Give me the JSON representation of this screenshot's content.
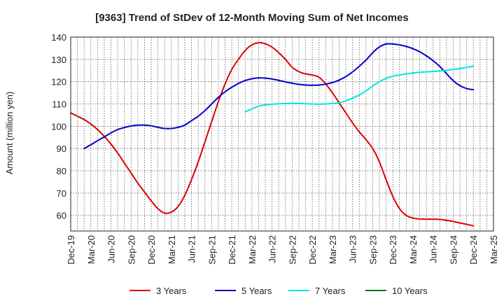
{
  "chart_data": {
    "type": "line",
    "title": "[9363]  Trend of StDev of 12-Month Moving Sum of Net Incomes",
    "xlabel": "",
    "ylabel": "Amount (million yen)",
    "ylim": [
      53,
      140
    ],
    "yticks": [
      60,
      70,
      80,
      90,
      100,
      110,
      120,
      130,
      140
    ],
    "grid": true,
    "legend_position": "bottom",
    "x_ticks": [
      "Dec-19",
      "Mar-20",
      "Jun-20",
      "Sep-20",
      "Dec-20",
      "Mar-21",
      "Jun-21",
      "Sep-21",
      "Dec-21",
      "Mar-22",
      "Jun-22",
      "Sep-22",
      "Dec-22",
      "Mar-23",
      "Jun-23",
      "Sep-23",
      "Dec-23",
      "Mar-24",
      "Jun-24",
      "Sep-24",
      "Dec-24",
      "Mar-25"
    ],
    "series": [
      {
        "name": "3 Years",
        "color": "#dd0000",
        "points": [
          [
            "Dec-19",
            106
          ],
          [
            "Jan-20",
            104.5
          ],
          [
            "Feb-20",
            103
          ],
          [
            "Mar-20",
            101
          ],
          [
            "Apr-20",
            98.5
          ],
          [
            "May-20",
            95.5
          ],
          [
            "Jun-20",
            92
          ],
          [
            "Jul-20",
            88
          ],
          [
            "Aug-20",
            83.5
          ],
          [
            "Sep-20",
            79
          ],
          [
            "Oct-20",
            74.5
          ],
          [
            "Nov-20",
            70.5
          ],
          [
            "Dec-20",
            66.5
          ],
          [
            "Jan-21",
            63
          ],
          [
            "Feb-21",
            61
          ],
          [
            "Mar-21",
            61.5
          ],
          [
            "Apr-21",
            64
          ],
          [
            "May-21",
            69
          ],
          [
            "Jun-21",
            76
          ],
          [
            "Jul-21",
            84
          ],
          [
            "Aug-21",
            93
          ],
          [
            "Sep-21",
            102
          ],
          [
            "Oct-21",
            111
          ],
          [
            "Nov-21",
            119
          ],
          [
            "Dec-21",
            125.5
          ],
          [
            "Jan-22",
            130
          ],
          [
            "Feb-22",
            134
          ],
          [
            "Mar-22",
            136.5
          ],
          [
            "Apr-22",
            137.5
          ],
          [
            "May-22",
            137
          ],
          [
            "Jun-22",
            135.5
          ],
          [
            "Jul-22",
            133
          ],
          [
            "Aug-22",
            130
          ],
          [
            "Sep-22",
            126.5
          ],
          [
            "Oct-22",
            124.5
          ],
          [
            "Nov-22",
            123.5
          ],
          [
            "Dec-22",
            123
          ],
          [
            "Jan-23",
            122
          ],
          [
            "Feb-23",
            119
          ],
          [
            "Mar-23",
            115
          ],
          [
            "Apr-23",
            110.5
          ],
          [
            "May-23",
            106
          ],
          [
            "Jun-23",
            101.5
          ],
          [
            "Jul-23",
            97.5
          ],
          [
            "Aug-23",
            94
          ],
          [
            "Sep-23",
            90
          ],
          [
            "Oct-23",
            84
          ],
          [
            "Nov-23",
            76
          ],
          [
            "Dec-23",
            68.5
          ],
          [
            "Jan-24",
            63
          ],
          [
            "Feb-24",
            60
          ],
          [
            "Mar-24",
            58.8
          ],
          [
            "Apr-24",
            58.4
          ],
          [
            "May-24",
            58.3
          ],
          [
            "Jun-24",
            58.3
          ],
          [
            "Jul-24",
            58.2
          ],
          [
            "Aug-24",
            57.8
          ],
          [
            "Sep-24",
            57.3
          ],
          [
            "Oct-24",
            56.6
          ],
          [
            "Nov-24",
            56
          ],
          [
            "Dec-24",
            55.3
          ]
        ]
      },
      {
        "name": "5 Years",
        "color": "#0000cc",
        "points": [
          [
            "Feb-20",
            90
          ],
          [
            "Mar-20",
            91.7
          ],
          [
            "Apr-20",
            93.5
          ],
          [
            "May-20",
            95.2
          ],
          [
            "Jun-20",
            97
          ],
          [
            "Jul-20",
            98.5
          ],
          [
            "Aug-20",
            99.4
          ],
          [
            "Sep-20",
            100.1
          ],
          [
            "Oct-20",
            100.5
          ],
          [
            "Nov-20",
            100.5
          ],
          [
            "Dec-20",
            100.2
          ],
          [
            "Jan-21",
            99.5
          ],
          [
            "Feb-21",
            99
          ],
          [
            "Mar-21",
            99
          ],
          [
            "Apr-21",
            99.5
          ],
          [
            "May-21",
            100.5
          ],
          [
            "Jun-21",
            102.5
          ],
          [
            "Jul-21",
            104.5
          ],
          [
            "Aug-21",
            107
          ],
          [
            "Sep-21",
            110
          ],
          [
            "Oct-21",
            113
          ],
          [
            "Nov-21",
            115.5
          ],
          [
            "Dec-21",
            117.5
          ],
          [
            "Jan-22",
            119.2
          ],
          [
            "Feb-22",
            120.5
          ],
          [
            "Mar-22",
            121.3
          ],
          [
            "Apr-22",
            121.7
          ],
          [
            "May-22",
            121.6
          ],
          [
            "Jun-22",
            121.2
          ],
          [
            "Jul-22",
            120.6
          ],
          [
            "Aug-22",
            119.9
          ],
          [
            "Sep-22",
            119.3
          ],
          [
            "Oct-22",
            118.8
          ],
          [
            "Nov-22",
            118.5
          ],
          [
            "Dec-22",
            118.4
          ],
          [
            "Jan-23",
            118.5
          ],
          [
            "Feb-23",
            118.9
          ],
          [
            "Mar-23",
            119.6
          ],
          [
            "Apr-23",
            120.7
          ],
          [
            "May-23",
            122.3
          ],
          [
            "Jun-23",
            124.4
          ],
          [
            "Jul-23",
            126.9
          ],
          [
            "Aug-23",
            129.7
          ],
          [
            "Sep-23",
            133
          ],
          [
            "Oct-23",
            135.6
          ],
          [
            "Nov-23",
            136.9
          ],
          [
            "Dec-23",
            136.9
          ],
          [
            "Jan-24",
            136.5
          ],
          [
            "Feb-24",
            135.8
          ],
          [
            "Mar-24",
            134.8
          ],
          [
            "Apr-24",
            133.4
          ],
          [
            "May-24",
            131.6
          ],
          [
            "Jun-24",
            129.4
          ],
          [
            "Jul-24",
            126.8
          ],
          [
            "Aug-24",
            123.6
          ],
          [
            "Sep-24",
            120.4
          ],
          [
            "Oct-24",
            118.2
          ],
          [
            "Nov-24",
            116.9
          ],
          [
            "Dec-24",
            116.4
          ]
        ]
      },
      {
        "name": "7 Years",
        "color": "#00e5e5",
        "points": [
          [
            "Feb-22",
            106.5
          ],
          [
            "Mar-22",
            107.8
          ],
          [
            "Apr-22",
            109
          ],
          [
            "May-22",
            109.6
          ],
          [
            "Jun-22",
            109.9
          ],
          [
            "Jul-22",
            110.1
          ],
          [
            "Aug-22",
            110.2
          ],
          [
            "Sep-22",
            110.2
          ],
          [
            "Oct-22",
            110.2
          ],
          [
            "Nov-22",
            110.1
          ],
          [
            "Dec-22",
            110
          ],
          [
            "Jan-23",
            109.9
          ],
          [
            "Feb-23",
            110
          ],
          [
            "Mar-23",
            110.2
          ],
          [
            "Apr-23",
            110.6
          ],
          [
            "May-23",
            111.4
          ],
          [
            "Jun-23",
            112.6
          ],
          [
            "Jul-23",
            114
          ],
          [
            "Aug-23",
            115.8
          ],
          [
            "Sep-23",
            118
          ],
          [
            "Oct-23",
            120
          ],
          [
            "Nov-23",
            121.5
          ],
          [
            "Dec-23",
            122.4
          ],
          [
            "Jan-24",
            123
          ],
          [
            "Feb-24",
            123.5
          ],
          [
            "Mar-24",
            123.9
          ],
          [
            "Apr-24",
            124.2
          ],
          [
            "May-24",
            124.4
          ],
          [
            "Jun-24",
            124.6
          ],
          [
            "Jul-24",
            124.8
          ],
          [
            "Aug-24",
            125.1
          ],
          [
            "Sep-24",
            125.5
          ],
          [
            "Oct-24",
            125.9
          ],
          [
            "Nov-24",
            126.4
          ],
          [
            "Dec-24",
            127
          ]
        ]
      },
      {
        "name": "10 Years",
        "color": "#007700",
        "points": []
      }
    ]
  }
}
